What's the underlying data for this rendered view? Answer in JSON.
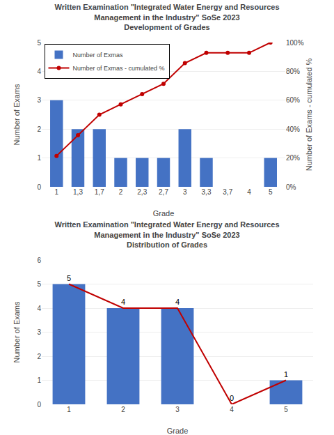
{
  "chart_data": [
    {
      "type": "bar",
      "title": "Written Examination \"Integrated Water Energy and Resources\nManagement in the Industry\" SoSe 2023\nDevelopment of Grades",
      "xlabel": "Grade",
      "ylabel": "Number of Exams",
      "y2label": "Number of Exams - cumulated %",
      "categories": [
        "1",
        "1,3",
        "1,7",
        "2",
        "2,3",
        "2,7",
        "3",
        "3,3",
        "3,7",
        "4",
        "5"
      ],
      "series": [
        {
          "name": "Number of Exmas",
          "type": "bar",
          "color": "#4472C4",
          "values": [
            3,
            2,
            2,
            1,
            1,
            1,
            2,
            1,
            0,
            0,
            1
          ]
        },
        {
          "name": "Number of Exmas - cumulated %",
          "type": "line",
          "color": "#C00000",
          "marker": "o",
          "axis": "y2",
          "values": [
            21.43,
            35.71,
            50.0,
            57.14,
            64.29,
            71.43,
            85.71,
            92.86,
            92.86,
            92.86,
            100.0
          ]
        }
      ],
      "ylim": [
        0,
        5
      ],
      "yticks": [
        0,
        1,
        2,
        3,
        4,
        5
      ],
      "y2lim": [
        0,
        100
      ],
      "y2ticks": [
        {
          "value": 0,
          "label": "0%"
        },
        {
          "value": 20,
          "label": "20%"
        },
        {
          "value": 40,
          "label": "40%"
        },
        {
          "value": 60,
          "label": "60%"
        },
        {
          "value": 80,
          "label": "80%"
        },
        {
          "value": 100,
          "label": "100%"
        }
      ],
      "grid": true,
      "legend": "upper left"
    },
    {
      "type": "bar",
      "title": "Written Examination \"Integrated Water Energy and Resources\nManagement in the Industry\" SoSe 2023\nDistribution of Grades",
      "xlabel": "Grade",
      "ylabel": "Number of Exams",
      "categories": [
        "1",
        "2",
        "3",
        "4",
        "5"
      ],
      "series": [
        {
          "type": "bar",
          "color": "#4472C4",
          "values": [
            5,
            4,
            4,
            0,
            1
          ]
        },
        {
          "type": "line",
          "color": "#C00000",
          "values": [
            5,
            4,
            4,
            0,
            1
          ]
        }
      ],
      "ylim": [
        0,
        6
      ],
      "yticks": [
        0,
        1,
        2,
        3,
        4,
        5,
        6
      ],
      "grid": true,
      "data_labels": true
    }
  ]
}
